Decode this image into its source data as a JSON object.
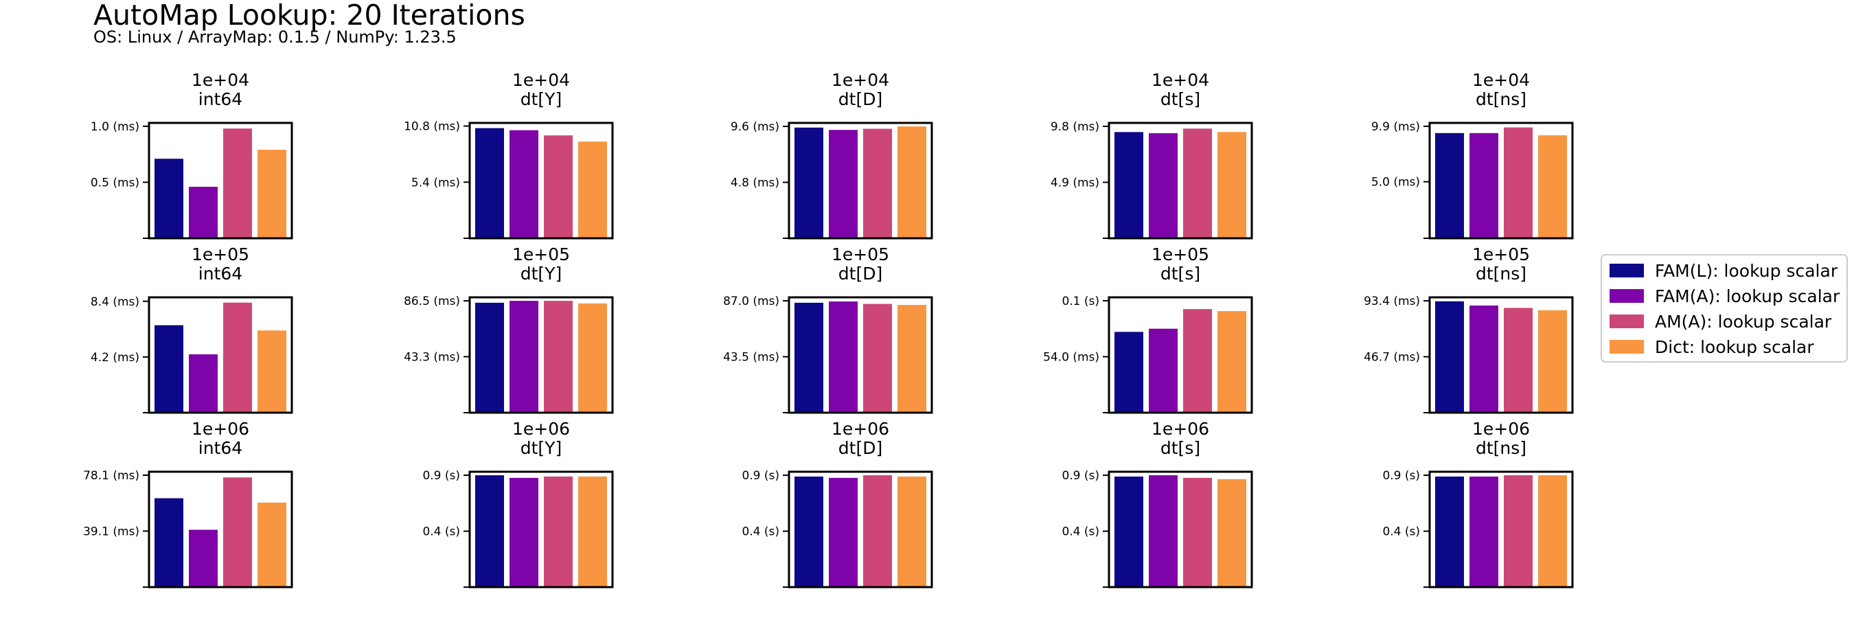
{
  "title": "AutoMap Lookup: 20 Iterations",
  "subtitle": "OS: Linux / ArrayMap: 0.1.5 / NumPy: 1.23.5",
  "legend": [
    {
      "label": "FAM(L): lookup scalar",
      "color": "#0d0887"
    },
    {
      "label": "FAM(A): lookup scalar",
      "color": "#7e03a8"
    },
    {
      "label": "AM(A): lookup scalar",
      "color": "#cc4778"
    },
    {
      "label": "Dict: lookup scalar",
      "color": "#f89540"
    }
  ],
  "chart_data": [
    {
      "type": "bar",
      "title_line1": "1e+04",
      "title_line2": "int64",
      "categories": [
        "FAM(L): lookup scalar",
        "FAM(A): lookup scalar",
        "AM(A): lookup scalar",
        "Dict: lookup scalar"
      ],
      "values": [
        0.71,
        0.46,
        0.98,
        0.79
      ],
      "yticks": [
        0.5,
        1.0
      ],
      "yticklabels": [
        "0.5 (ms)",
        "1.0 (ms)"
      ],
      "ylim": [
        0,
        1.03
      ]
    },
    {
      "type": "bar",
      "title_line1": "1e+04",
      "title_line2": "dt[Y]",
      "categories": [
        "FAM(L): lookup scalar",
        "FAM(A): lookup scalar",
        "AM(A): lookup scalar",
        "Dict: lookup scalar"
      ],
      "values": [
        10.6,
        10.4,
        9.9,
        9.3
      ],
      "yticks": [
        5.4,
        10.8
      ],
      "yticklabels": [
        "5.4 (ms)",
        "10.8 (ms)"
      ],
      "ylim": [
        0,
        11.1
      ]
    },
    {
      "type": "bar",
      "title_line1": "1e+04",
      "title_line2": "dt[D]",
      "categories": [
        "FAM(L): lookup scalar",
        "FAM(A): lookup scalar",
        "AM(A): lookup scalar",
        "Dict: lookup scalar"
      ],
      "values": [
        9.5,
        9.3,
        9.4,
        9.6
      ],
      "yticks": [
        4.8,
        9.6
      ],
      "yticklabels": [
        "4.8 (ms)",
        "9.6 (ms)"
      ],
      "ylim": [
        0,
        9.9
      ]
    },
    {
      "type": "bar",
      "title_line1": "1e+04",
      "title_line2": "dt[s]",
      "categories": [
        "FAM(L): lookup scalar",
        "FAM(A): lookup scalar",
        "AM(A): lookup scalar",
        "Dict: lookup scalar"
      ],
      "values": [
        9.3,
        9.2,
        9.6,
        9.3
      ],
      "yticks": [
        4.9,
        9.8
      ],
      "yticklabels": [
        "4.9 (ms)",
        "9.8 (ms)"
      ],
      "ylim": [
        0,
        10.1
      ]
    },
    {
      "type": "bar",
      "title_line1": "1e+04",
      "title_line2": "dt[ns]",
      "categories": [
        "FAM(L): lookup scalar",
        "FAM(A): lookup scalar",
        "AM(A): lookup scalar",
        "Dict: lookup scalar"
      ],
      "values": [
        9.3,
        9.3,
        9.8,
        9.1
      ],
      "yticks": [
        5.0,
        9.9
      ],
      "yticklabels": [
        "5.0 (ms)",
        "9.9 (ms)"
      ],
      "ylim": [
        0,
        10.2
      ]
    },
    {
      "type": "bar",
      "title_line1": "1e+05",
      "title_line2": "int64",
      "categories": [
        "FAM(L): lookup scalar",
        "FAM(A): lookup scalar",
        "AM(A): lookup scalar",
        "Dict: lookup scalar"
      ],
      "values": [
        6.6,
        4.4,
        8.3,
        6.2
      ],
      "yticks": [
        4.2,
        8.4
      ],
      "yticklabels": [
        "4.2 (ms)",
        "8.4 (ms)"
      ],
      "ylim": [
        0,
        8.7
      ]
    },
    {
      "type": "bar",
      "title_line1": "1e+05",
      "title_line2": "dt[Y]",
      "categories": [
        "FAM(L): lookup scalar",
        "FAM(A): lookup scalar",
        "AM(A): lookup scalar",
        "Dict: lookup scalar"
      ],
      "values": [
        85.0,
        86.5,
        86.5,
        84.5
      ],
      "yticks": [
        43.3,
        86.5
      ],
      "yticklabels": [
        "43.3 (ms)",
        "86.5 (ms)"
      ],
      "ylim": [
        0,
        89.2
      ]
    },
    {
      "type": "bar",
      "title_line1": "1e+05",
      "title_line2": "dt[D]",
      "categories": [
        "FAM(L): lookup scalar",
        "FAM(A): lookup scalar",
        "AM(A): lookup scalar",
        "Dict: lookup scalar"
      ],
      "values": [
        85.5,
        86.5,
        84.6,
        83.8
      ],
      "yticks": [
        43.5,
        87.0
      ],
      "yticklabels": [
        "43.5 (ms)",
        "87.0 (ms)"
      ],
      "ylim": [
        0,
        89.7
      ]
    },
    {
      "type": "bar",
      "title_line1": "1e+05",
      "title_line2": "dt[s]",
      "categories": [
        "FAM(L): lookup scalar",
        "FAM(A): lookup scalar",
        "AM(A): lookup scalar",
        "Dict: lookup scalar"
      ],
      "values": [
        0.078,
        0.081,
        0.1,
        0.098
      ],
      "yticks": [
        0.054,
        0.108
      ],
      "yticklabels": [
        "54.0 (ms)",
        "0.1 (s)"
      ],
      "ylim": [
        0,
        0.1113
      ]
    },
    {
      "type": "bar",
      "title_line1": "1e+05",
      "title_line2": "dt[ns]",
      "categories": [
        "FAM(L): lookup scalar",
        "FAM(A): lookup scalar",
        "AM(A): lookup scalar",
        "Dict: lookup scalar"
      ],
      "values": [
        93.0,
        89.5,
        87.5,
        85.5
      ],
      "yticks": [
        46.7,
        93.4
      ],
      "yticklabels": [
        "46.7 (ms)",
        "93.4 (ms)"
      ],
      "ylim": [
        0,
        96.3
      ]
    },
    {
      "type": "bar",
      "title_line1": "1e+06",
      "title_line2": "int64",
      "categories": [
        "FAM(L): lookup scalar",
        "FAM(A): lookup scalar",
        "AM(A): lookup scalar",
        "Dict: lookup scalar"
      ],
      "values": [
        62.0,
        40.0,
        76.5,
        59.0
      ],
      "yticks": [
        39.1,
        78.1
      ],
      "yticklabels": [
        "39.1 (ms)",
        "78.1 (ms)"
      ],
      "ylim": [
        0,
        80.5
      ]
    },
    {
      "type": "bar",
      "title_line1": "1e+06",
      "title_line2": "dt[Y]",
      "categories": [
        "FAM(L): lookup scalar",
        "FAM(A): lookup scalar",
        "AM(A): lookup scalar",
        "Dict: lookup scalar"
      ],
      "values": [
        0.86,
        0.84,
        0.85,
        0.85
      ],
      "yticks": [
        0.43,
        0.86
      ],
      "yticklabels": [
        "0.4 (s)",
        "0.9 (s)"
      ],
      "ylim": [
        0,
        0.887
      ]
    },
    {
      "type": "bar",
      "title_line1": "1e+06",
      "title_line2": "dt[D]",
      "categories": [
        "FAM(L): lookup scalar",
        "FAM(A): lookup scalar",
        "AM(A): lookup scalar",
        "Dict: lookup scalar"
      ],
      "values": [
        0.85,
        0.84,
        0.86,
        0.85
      ],
      "yticks": [
        0.43,
        0.86
      ],
      "yticklabels": [
        "0.4 (s)",
        "0.9 (s)"
      ],
      "ylim": [
        0,
        0.887
      ]
    },
    {
      "type": "bar",
      "title_line1": "1e+06",
      "title_line2": "dt[s]",
      "categories": [
        "FAM(L): lookup scalar",
        "FAM(A): lookup scalar",
        "AM(A): lookup scalar",
        "Dict: lookup scalar"
      ],
      "values": [
        0.85,
        0.86,
        0.84,
        0.83
      ],
      "yticks": [
        0.43,
        0.86
      ],
      "yticklabels": [
        "0.4 (s)",
        "0.9 (s)"
      ],
      "ylim": [
        0,
        0.887
      ]
    },
    {
      "type": "bar",
      "title_line1": "1e+06",
      "title_line2": "dt[ns]",
      "categories": [
        "FAM(L): lookup scalar",
        "FAM(A): lookup scalar",
        "AM(A): lookup scalar",
        "Dict: lookup scalar"
      ],
      "values": [
        0.85,
        0.85,
        0.86,
        0.86
      ],
      "yticks": [
        0.43,
        0.86
      ],
      "yticklabels": [
        "0.4 (s)",
        "0.9 (s)"
      ],
      "ylim": [
        0,
        0.887
      ]
    }
  ]
}
